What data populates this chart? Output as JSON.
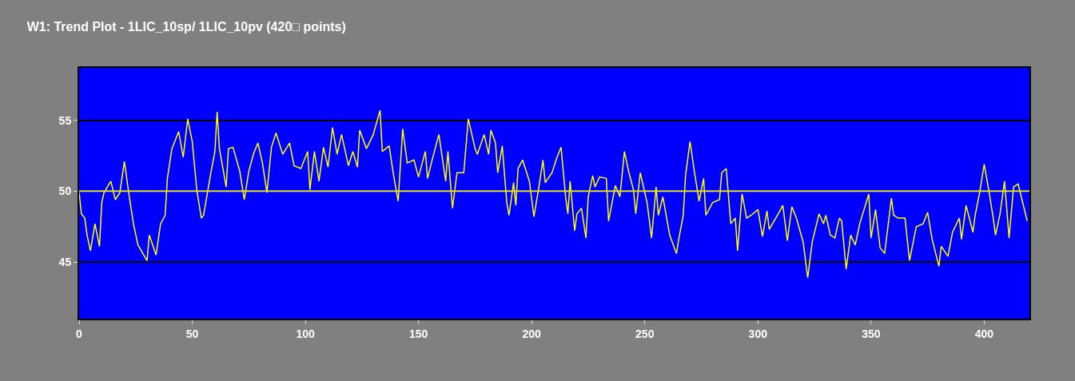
{
  "chart_data": {
    "type": "line",
    "title": "W1: Trend Plot - 1LIC_10sp/ 1LIC_10pv (420□ points)",
    "x": [
      0,
      1,
      2.5,
      3.5,
      5,
      7,
      9,
      10,
      11,
      14,
      16,
      18,
      20,
      22,
      24,
      26,
      30,
      31,
      34,
      36,
      38,
      39,
      41,
      44,
      46,
      48,
      50,
      52,
      54,
      55,
      58,
      60,
      61,
      62,
      65,
      66,
      68,
      71,
      73,
      75,
      77,
      79,
      81,
      83,
      85,
      87,
      90,
      93,
      95,
      98,
      101,
      102,
      104,
      106,
      108,
      110,
      112,
      114,
      116,
      119,
      121,
      123,
      124,
      127,
      130,
      133,
      134,
      137,
      139,
      141,
      143,
      145,
      148,
      150,
      153,
      154,
      156,
      159,
      162,
      163,
      165,
      167,
      170,
      172,
      175,
      176,
      179,
      181,
      182,
      184,
      185,
      187,
      189,
      190,
      192,
      193,
      194,
      196,
      199,
      201,
      203,
      205,
      206,
      209,
      211,
      213,
      215,
      216,
      217,
      219,
      220,
      222,
      224,
      225,
      227,
      228,
      230,
      233,
      234,
      237,
      239,
      241,
      243,
      245,
      246,
      248,
      251,
      253,
      255,
      256,
      258,
      261,
      264,
      265,
      267,
      268,
      270,
      272,
      274,
      276,
      277,
      280,
      283,
      284,
      286,
      288,
      290,
      291,
      293,
      295,
      297,
      300,
      302,
      304,
      305,
      309,
      311,
      313,
      315,
      317,
      320,
      322,
      324,
      327,
      329,
      330,
      332,
      334,
      336,
      337,
      339,
      341,
      343,
      345,
      349,
      350,
      352,
      354,
      356,
      359,
      360,
      362,
      365,
      367,
      370,
      373,
      375,
      377,
      380,
      381,
      384,
      386,
      389,
      390,
      392,
      395,
      396,
      398,
      400,
      402,
      404,
      405,
      407,
      409,
      411,
      413,
      415,
      417,
      419
    ],
    "series": [
      {
        "color": "#ffff00",
        "values": [
          49.9,
          48.4,
          48.1,
          46.9,
          45.8,
          47.7,
          46.1,
          49.2,
          49.9,
          50.7,
          49.4,
          49.9,
          52.1,
          49.8,
          47.7,
          46.2,
          45.1,
          46.9,
          45.5,
          47.7,
          48.3,
          50.9,
          53.0,
          54.2,
          52.4,
          55.1,
          53.5,
          50.1,
          48.1,
          48.3,
          51.1,
          52.8,
          55.6,
          53.0,
          50.3,
          53.0,
          53.1,
          51.4,
          49.4,
          51.4,
          52.6,
          53.4,
          52.0,
          49.9,
          53.1,
          54.1,
          52.6,
          53.4,
          51.8,
          51.6,
          52.8,
          50.1,
          52.8,
          50.7,
          53.1,
          51.7,
          54.5,
          52.6,
          54.0,
          51.8,
          52.8,
          51.7,
          54.3,
          53.0,
          54.0,
          55.7,
          52.8,
          53.2,
          51.1,
          49.3,
          54.4,
          52.0,
          52.2,
          51.0,
          52.8,
          50.9,
          52.2,
          54.0,
          50.7,
          52.8,
          48.8,
          51.3,
          51.3,
          55.1,
          53.0,
          52.6,
          54.0,
          52.6,
          54.3,
          53.4,
          51.3,
          53.2,
          49.2,
          48.3,
          50.6,
          49.0,
          51.6,
          52.2,
          50.7,
          48.2,
          50.1,
          52.2,
          50.6,
          51.3,
          52.3,
          53.1,
          49.6,
          48.4,
          50.7,
          47.2,
          48.4,
          48.8,
          46.7,
          49.6,
          51.1,
          50.3,
          51.0,
          50.9,
          47.9,
          50.4,
          49.6,
          52.8,
          51.3,
          50.1,
          48.4,
          51.3,
          49.2,
          46.7,
          50.3,
          48.3,
          49.6,
          46.9,
          45.6,
          46.6,
          48.3,
          51.1,
          53.5,
          51.3,
          49.3,
          50.9,
          48.3,
          49.2,
          49.4,
          51.3,
          51.6,
          47.7,
          48.1,
          45.8,
          49.8,
          48.1,
          48.3,
          48.7,
          46.8,
          48.6,
          47.3,
          48.4,
          49.0,
          46.5,
          48.9,
          48.1,
          46.4,
          43.9,
          46.4,
          48.4,
          47.7,
          48.3,
          46.9,
          46.7,
          48.1,
          47.9,
          44.5,
          46.9,
          46.2,
          47.7,
          49.8,
          46.7,
          48.7,
          46.0,
          45.6,
          49.5,
          48.3,
          48.1,
          48.1,
          45.1,
          47.5,
          47.7,
          48.5,
          46.6,
          44.7,
          46.1,
          45.4,
          47.1,
          48.1,
          46.6,
          49.0,
          47.1,
          48.3,
          49.9,
          51.9,
          50.1,
          48.1,
          46.9,
          48.4,
          50.7,
          46.7,
          50.3,
          50.5,
          49.2,
          47.9
        ]
      }
    ],
    "xlim": [
      0,
      420
    ],
    "xticks": [
      0,
      50,
      100,
      150,
      200,
      250,
      300,
      350,
      400
    ],
    "ylim": [
      41,
      58.7
    ],
    "yticks": [
      45,
      50,
      55
    ],
    "grid": "y",
    "marker": "none",
    "line_style": "solid",
    "ref_lines": [
      {
        "axis": "y",
        "value": 50,
        "color": "#e0e040"
      }
    ]
  }
}
